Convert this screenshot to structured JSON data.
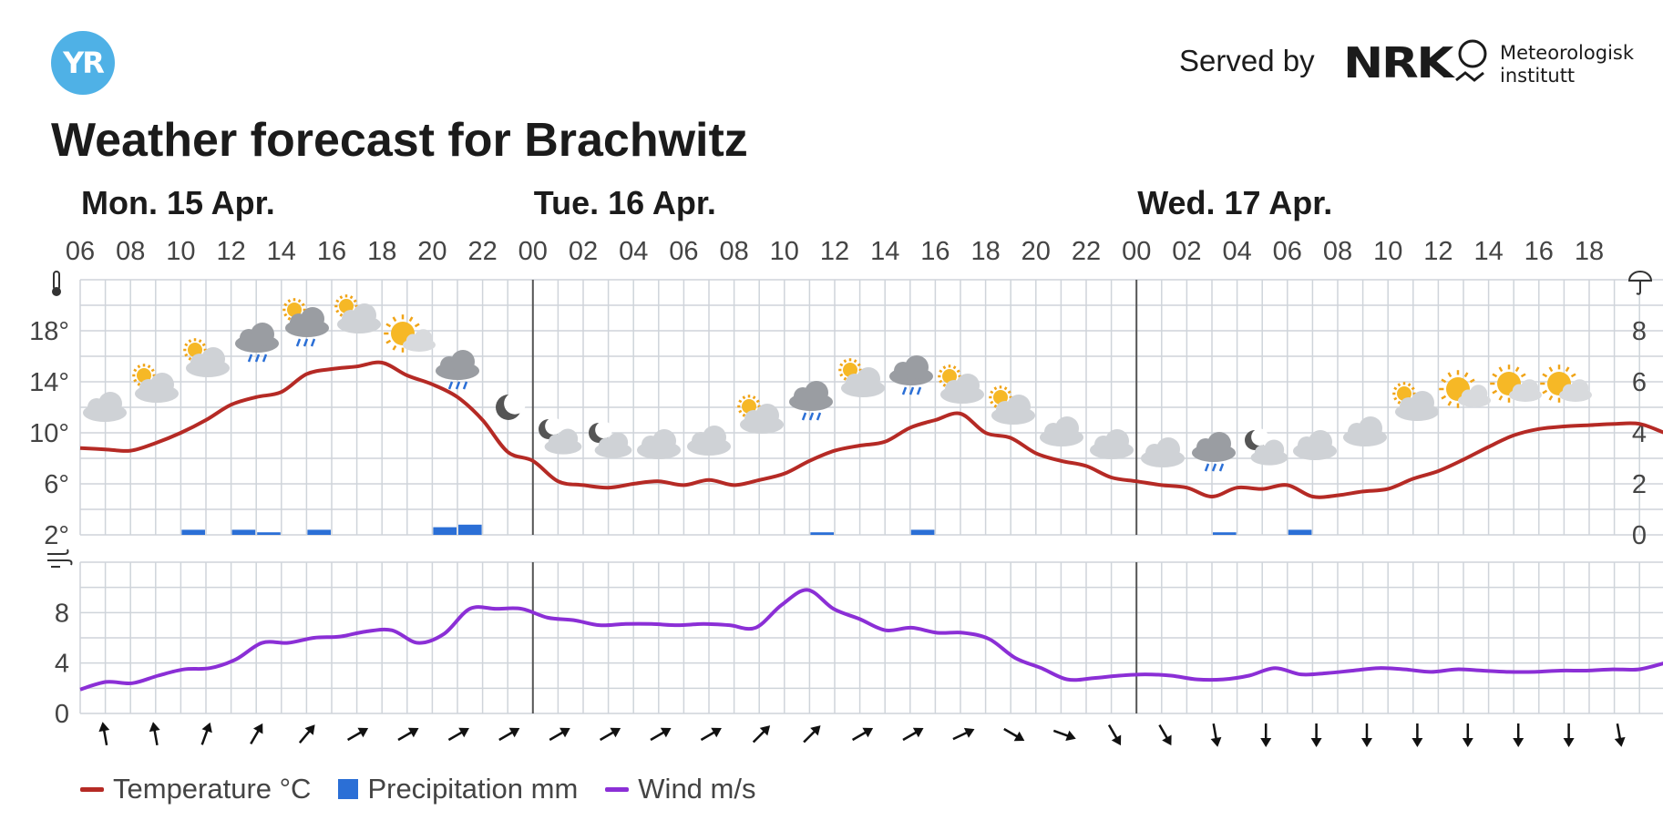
{
  "header": {
    "logo_text": "YR",
    "served_by": "Served by",
    "nrk_text": "NRK",
    "met_line1": "Meteorologisk",
    "met_line2": "institutt",
    "title": "Weather forecast for Brachwitz"
  },
  "colors": {
    "temperature": "#b52a25",
    "precipitation": "#2b6fd6",
    "wind": "#8b2fd6",
    "grid": "#cfd4da",
    "logo": "#4fb1e6"
  },
  "chart_data": {
    "type": "line",
    "days": [
      {
        "label": "Mon. 15 Apr.",
        "start_hour_index": 0
      },
      {
        "label": "Tue. 16 Apr.",
        "start_hour_index": 18
      },
      {
        "label": "Wed. 17 Apr.",
        "start_hour_index": 42
      }
    ],
    "hour_labels": [
      "06",
      "08",
      "10",
      "12",
      "14",
      "16",
      "18",
      "20",
      "22",
      "00",
      "02",
      "04",
      "06",
      "08",
      "10",
      "12",
      "14",
      "16",
      "18",
      "20",
      "22",
      "00",
      "02",
      "04",
      "06",
      "08",
      "10",
      "12",
      "14",
      "16",
      "18"
    ],
    "temperature": {
      "unit": "°C",
      "ylim": [
        2,
        22
      ],
      "ticks": [
        "2°",
        "6°",
        "10°",
        "14°",
        "18°"
      ],
      "tick_values": [
        2,
        6,
        10,
        14,
        18
      ],
      "values": [
        8.8,
        8.7,
        8.6,
        9.2,
        10.0,
        11.0,
        12.2,
        12.8,
        13.2,
        14.6,
        15.0,
        15.2,
        15.5,
        14.5,
        13.8,
        12.8,
        11.0,
        8.5,
        7.8,
        6.2,
        5.9,
        5.7,
        6.0,
        6.2,
        5.9,
        6.3,
        5.9,
        6.3,
        6.8,
        7.8,
        8.6,
        9.0,
        9.3,
        10.4,
        11.0,
        11.5,
        10.0,
        9.6,
        8.4,
        7.8,
        7.4,
        6.5,
        6.2,
        5.9,
        5.7,
        5.0,
        5.7,
        5.6,
        5.9,
        5.0,
        5.1,
        5.4,
        5.6,
        6.4,
        7.0,
        7.9,
        8.9,
        9.8,
        10.3,
        10.5,
        10.6,
        10.7,
        10.7,
        10.0,
        9.3
      ]
    },
    "precipitation": {
      "unit": "mm",
      "ylim": [
        0,
        10
      ],
      "ticks": [
        "0",
        "2",
        "4",
        "6",
        "8"
      ],
      "tick_values": [
        0,
        2,
        4,
        6,
        8
      ],
      "bars": [
        {
          "hour_index": 4,
          "value": 0.2
        },
        {
          "hour_index": 6,
          "value": 0.2
        },
        {
          "hour_index": 7,
          "value": 0.1
        },
        {
          "hour_index": 9,
          "value": 0.2
        },
        {
          "hour_index": 14,
          "value": 0.3
        },
        {
          "hour_index": 15,
          "value": 0.4
        },
        {
          "hour_index": 29,
          "value": 0.1
        },
        {
          "hour_index": 33,
          "value": 0.2
        },
        {
          "hour_index": 45,
          "value": 0.1
        },
        {
          "hour_index": 48,
          "value": 0.2
        }
      ]
    },
    "wind": {
      "unit": "m/s",
      "ylim": [
        0,
        12
      ],
      "ticks": [
        "0",
        "4",
        "8"
      ],
      "tick_values": [
        0,
        4,
        8
      ],
      "values": [
        1.9,
        2.5,
        2.4,
        3.0,
        3.5,
        3.6,
        4.3,
        5.6,
        5.6,
        6.0,
        6.1,
        6.5,
        6.6,
        5.6,
        6.3,
        8.3,
        8.3,
        8.3,
        7.6,
        7.4,
        7.0,
        7.1,
        7.1,
        7.0,
        7.1,
        7.0,
        6.8,
        8.6,
        9.8,
        8.3,
        7.5,
        6.6,
        6.8,
        6.4,
        6.4,
        5.9,
        4.4,
        3.6,
        2.7,
        2.8,
        3.0,
        3.1,
        3.0,
        2.7,
        2.7,
        3.0,
        3.6,
        3.1,
        3.2,
        3.4,
        3.6,
        3.5,
        3.3,
        3.5,
        3.4,
        3.3,
        3.3,
        3.4,
        3.4,
        3.5,
        3.5,
        4.0
      ]
    },
    "wind_direction_degrees": [
      350,
      350,
      20,
      30,
      40,
      60,
      60,
      60,
      60,
      60,
      60,
      60,
      60,
      45,
      45,
      60,
      60,
      65,
      120,
      110,
      150,
      150,
      170,
      180,
      180,
      180,
      180,
      180,
      180,
      180,
      170,
      160
    ],
    "weather_icons": [
      "cloudy",
      "partly-cloudy",
      "partly-cloudy",
      "rain-cloud",
      "partly-rain",
      "partly-cloudy",
      "partly-cloudy-sun",
      "rain-cloud",
      "moon",
      "moon-cloud",
      "moon-cloud",
      "cloudy",
      "cloudy",
      "partly-cloudy",
      "rain-cloud",
      "partly-cloudy",
      "rain-cloud",
      "partly-cloudy",
      "partly-cloudy",
      "cloudy",
      "cloudy",
      "cloudy",
      "rain-cloud",
      "moon-cloud",
      "cloudy",
      "cloudy",
      "partly-cloudy",
      "partly-cloudy-sun",
      "partly-cloudy-sun",
      "partly-cloudy-sun"
    ],
    "legend": [
      "Temperature °C",
      "Precipitation mm",
      "Wind m/s"
    ]
  }
}
